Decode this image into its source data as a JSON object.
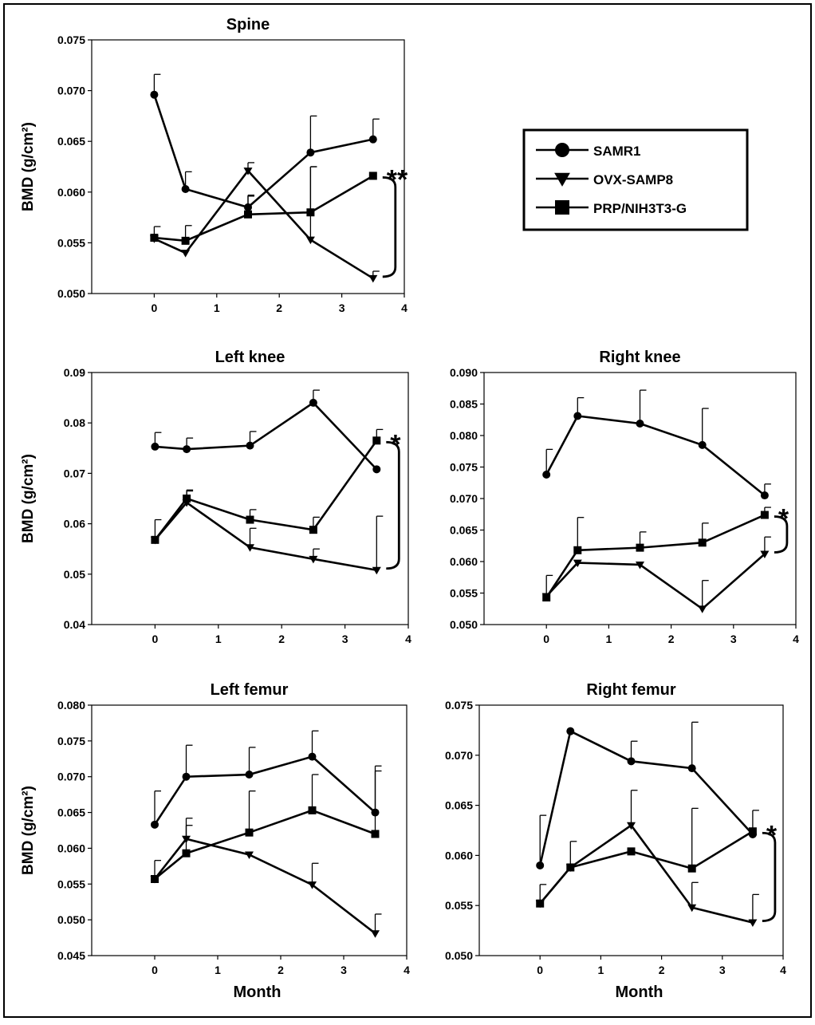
{
  "legend": {
    "items": [
      {
        "name": "SAMR1",
        "marker": "circle"
      },
      {
        "name": "OVX-SAMP8",
        "marker": "triangle-down"
      },
      {
        "name": "PRP/NIH3T3-G",
        "marker": "square"
      }
    ]
  },
  "chart_data": [
    {
      "type": "line",
      "title": "Spine",
      "ylabel": "BMD (g/cm²)",
      "xlabel": "",
      "xlim": [
        -1,
        4
      ],
      "ylim": [
        0.05,
        0.075
      ],
      "xticks": [
        0,
        1,
        2,
        3,
        4
      ],
      "yticks": [
        "0.050",
        "0.055",
        "0.060",
        "0.065",
        "0.070",
        "0.075"
      ],
      "x": [
        0,
        0.5,
        1.5,
        2.5,
        3.5
      ],
      "series": [
        {
          "name": "SAMR1",
          "marker": "circle",
          "values": [
            0.0696,
            0.0603,
            0.0585,
            0.0639,
            0.0652
          ],
          "errors": [
            0.002,
            0.0017,
            0.0011,
            0.0036,
            0.002
          ]
        },
        {
          "name": "OVX-SAMP8",
          "marker": "triangle-down",
          "values": [
            0.0554,
            0.054,
            0.0621,
            0.0553,
            0.0515
          ],
          "errors": [
            0,
            0,
            0.0008,
            0.0072,
            0.0007
          ]
        },
        {
          "name": "PRP/NIH3T3-G",
          "marker": "square",
          "values": [
            0.0555,
            0.0552,
            0.0578,
            0.058,
            0.0616
          ],
          "errors": [
            0.0011,
            0.0015,
            0.0019,
            0.0045,
            0
          ]
        }
      ],
      "significance": {
        "label": "**",
        "from_series": "PRP/NIH3T3-G",
        "to_series": "OVX-SAMP8",
        "x": 3.5
      }
    },
    {
      "type": "line",
      "title": "Left knee",
      "ylabel": "BMD (g/cm²)",
      "xlabel": "",
      "xlim": [
        -1,
        4
      ],
      "ylim": [
        0.04,
        0.09
      ],
      "xticks": [
        0,
        1,
        2,
        3,
        4
      ],
      "yticks": [
        "0.04",
        "0.05",
        "0.06",
        "0.07",
        "0.08",
        "0.09"
      ],
      "x": [
        0,
        0.5,
        1.5,
        2.5,
        3.5
      ],
      "series": [
        {
          "name": "SAMR1",
          "marker": "circle",
          "values": [
            0.0753,
            0.0748,
            0.0755,
            0.084,
            0.0708
          ],
          "errors": [
            0.0028,
            0.0022,
            0.0028,
            0.0025,
            0
          ]
        },
        {
          "name": "OVX-SAMP8",
          "marker": "triangle-down",
          "values": [
            0.0568,
            0.0642,
            0.0553,
            0.053,
            0.0508
          ],
          "errors": [
            0.004,
            0.0025,
            0.0038,
            0.002,
            0.0107
          ]
        },
        {
          "name": "PRP/NIH3T3-G",
          "marker": "square",
          "values": [
            0.0568,
            0.065,
            0.0608,
            0.0588,
            0.0765
          ],
          "errors": [
            0,
            0.0015,
            0.002,
            0.0025,
            0.0022
          ]
        }
      ],
      "significance": {
        "label": "*",
        "from_series": "PRP/NIH3T3-G",
        "to_series": "OVX-SAMP8",
        "x": 3.5
      }
    },
    {
      "type": "line",
      "title": "Right knee",
      "ylabel": "",
      "xlabel": "",
      "xlim": [
        -1,
        4
      ],
      "ylim": [
        0.05,
        0.09
      ],
      "xticks": [
        0,
        1,
        2,
        3,
        4
      ],
      "yticks": [
        "0.050",
        "0.055",
        "0.060",
        "0.065",
        "0.070",
        "0.075",
        "0.080",
        "0.085",
        "0.090"
      ],
      "x": [
        0,
        0.5,
        1.5,
        2.5,
        3.5
      ],
      "series": [
        {
          "name": "SAMR1",
          "marker": "circle",
          "values": [
            0.0738,
            0.0831,
            0.0819,
            0.0785,
            0.0705
          ],
          "errors": [
            0.004,
            0.0029,
            0.0053,
            0.0058,
            0.0018
          ]
        },
        {
          "name": "OVX-SAMP8",
          "marker": "triangle-down",
          "values": [
            0.0545,
            0.0598,
            0.0595,
            0.0525,
            0.0612
          ],
          "errors": [
            0.0033,
            0,
            0,
            0.0045,
            0.0027
          ]
        },
        {
          "name": "PRP/NIH3T3-G",
          "marker": "square",
          "values": [
            0.0543,
            0.0618,
            0.0622,
            0.063,
            0.0674
          ],
          "errors": [
            0,
            0.0052,
            0.0025,
            0.0031,
            0.0012
          ]
        }
      ],
      "significance": {
        "label": "*",
        "from_series": "PRP/NIH3T3-G",
        "to_series": "OVX-SAMP8",
        "x": 3.5
      }
    },
    {
      "type": "line",
      "title": "Left femur",
      "ylabel": "BMD (g/cm²)",
      "xlabel": "Month",
      "xlim": [
        -1,
        4
      ],
      "ylim": [
        0.045,
        0.08
      ],
      "xticks": [
        0,
        1,
        2,
        3,
        4
      ],
      "yticks": [
        "0.045",
        "0.050",
        "0.055",
        "0.060",
        "0.065",
        "0.070",
        "0.075",
        "0.080"
      ],
      "x": [
        0,
        0.5,
        1.5,
        2.5,
        3.5
      ],
      "series": [
        {
          "name": "SAMR1",
          "marker": "circle",
          "values": [
            0.0633,
            0.07,
            0.0703,
            0.0728,
            0.065
          ],
          "errors": [
            0.0047,
            0.0044,
            0.0038,
            0.0036,
            0.0065
          ]
        },
        {
          "name": "OVX-SAMP8",
          "marker": "triangle-down",
          "values": [
            0.0557,
            0.0613,
            0.0591,
            0.0549,
            0.0481
          ],
          "errors": [
            0.0026,
            0.0029,
            0,
            0.003,
            0.0027
          ]
        },
        {
          "name": "PRP/NIH3T3-G",
          "marker": "square",
          "values": [
            0.0557,
            0.0593,
            0.0622,
            0.0653,
            0.062
          ],
          "errors": [
            0,
            0.0039,
            0.0058,
            0.005,
            0.0088
          ]
        }
      ]
    },
    {
      "type": "line",
      "title": "Right femur",
      "ylabel": "",
      "xlabel": "Month",
      "xlim": [
        -1,
        4
      ],
      "ylim": [
        0.05,
        0.075
      ],
      "xticks": [
        0,
        1,
        2,
        3,
        4
      ],
      "yticks": [
        "0.050",
        "0.055",
        "0.060",
        "0.065",
        "0.070",
        "0.075"
      ],
      "x": [
        0,
        0.5,
        1.5,
        2.5,
        3.5
      ],
      "series": [
        {
          "name": "SAMR1",
          "marker": "circle",
          "values": [
            0.059,
            0.0724,
            0.0694,
            0.0687,
            0.0621
          ],
          "errors": [
            0.005,
            0,
            0.002,
            0.0046,
            0.0024
          ]
        },
        {
          "name": "OVX-SAMP8",
          "marker": "triangle-down",
          "values": [
            0.0552,
            0.0588,
            0.063,
            0.0548,
            0.0533
          ],
          "errors": [
            0.0019,
            0.0026,
            0.0035,
            0.0025,
            0.0028
          ]
        },
        {
          "name": "PRP/NIH3T3-G",
          "marker": "square",
          "values": [
            0.0552,
            0.0588,
            0.0604,
            0.0587,
            0.0624
          ],
          "errors": [
            0,
            0,
            0,
            0.006,
            0
          ]
        }
      ],
      "significance": {
        "label": "*",
        "from_series": "PRP/NIH3T3-G",
        "to_series": "OVX-SAMP8",
        "x": 3.5
      }
    }
  ]
}
